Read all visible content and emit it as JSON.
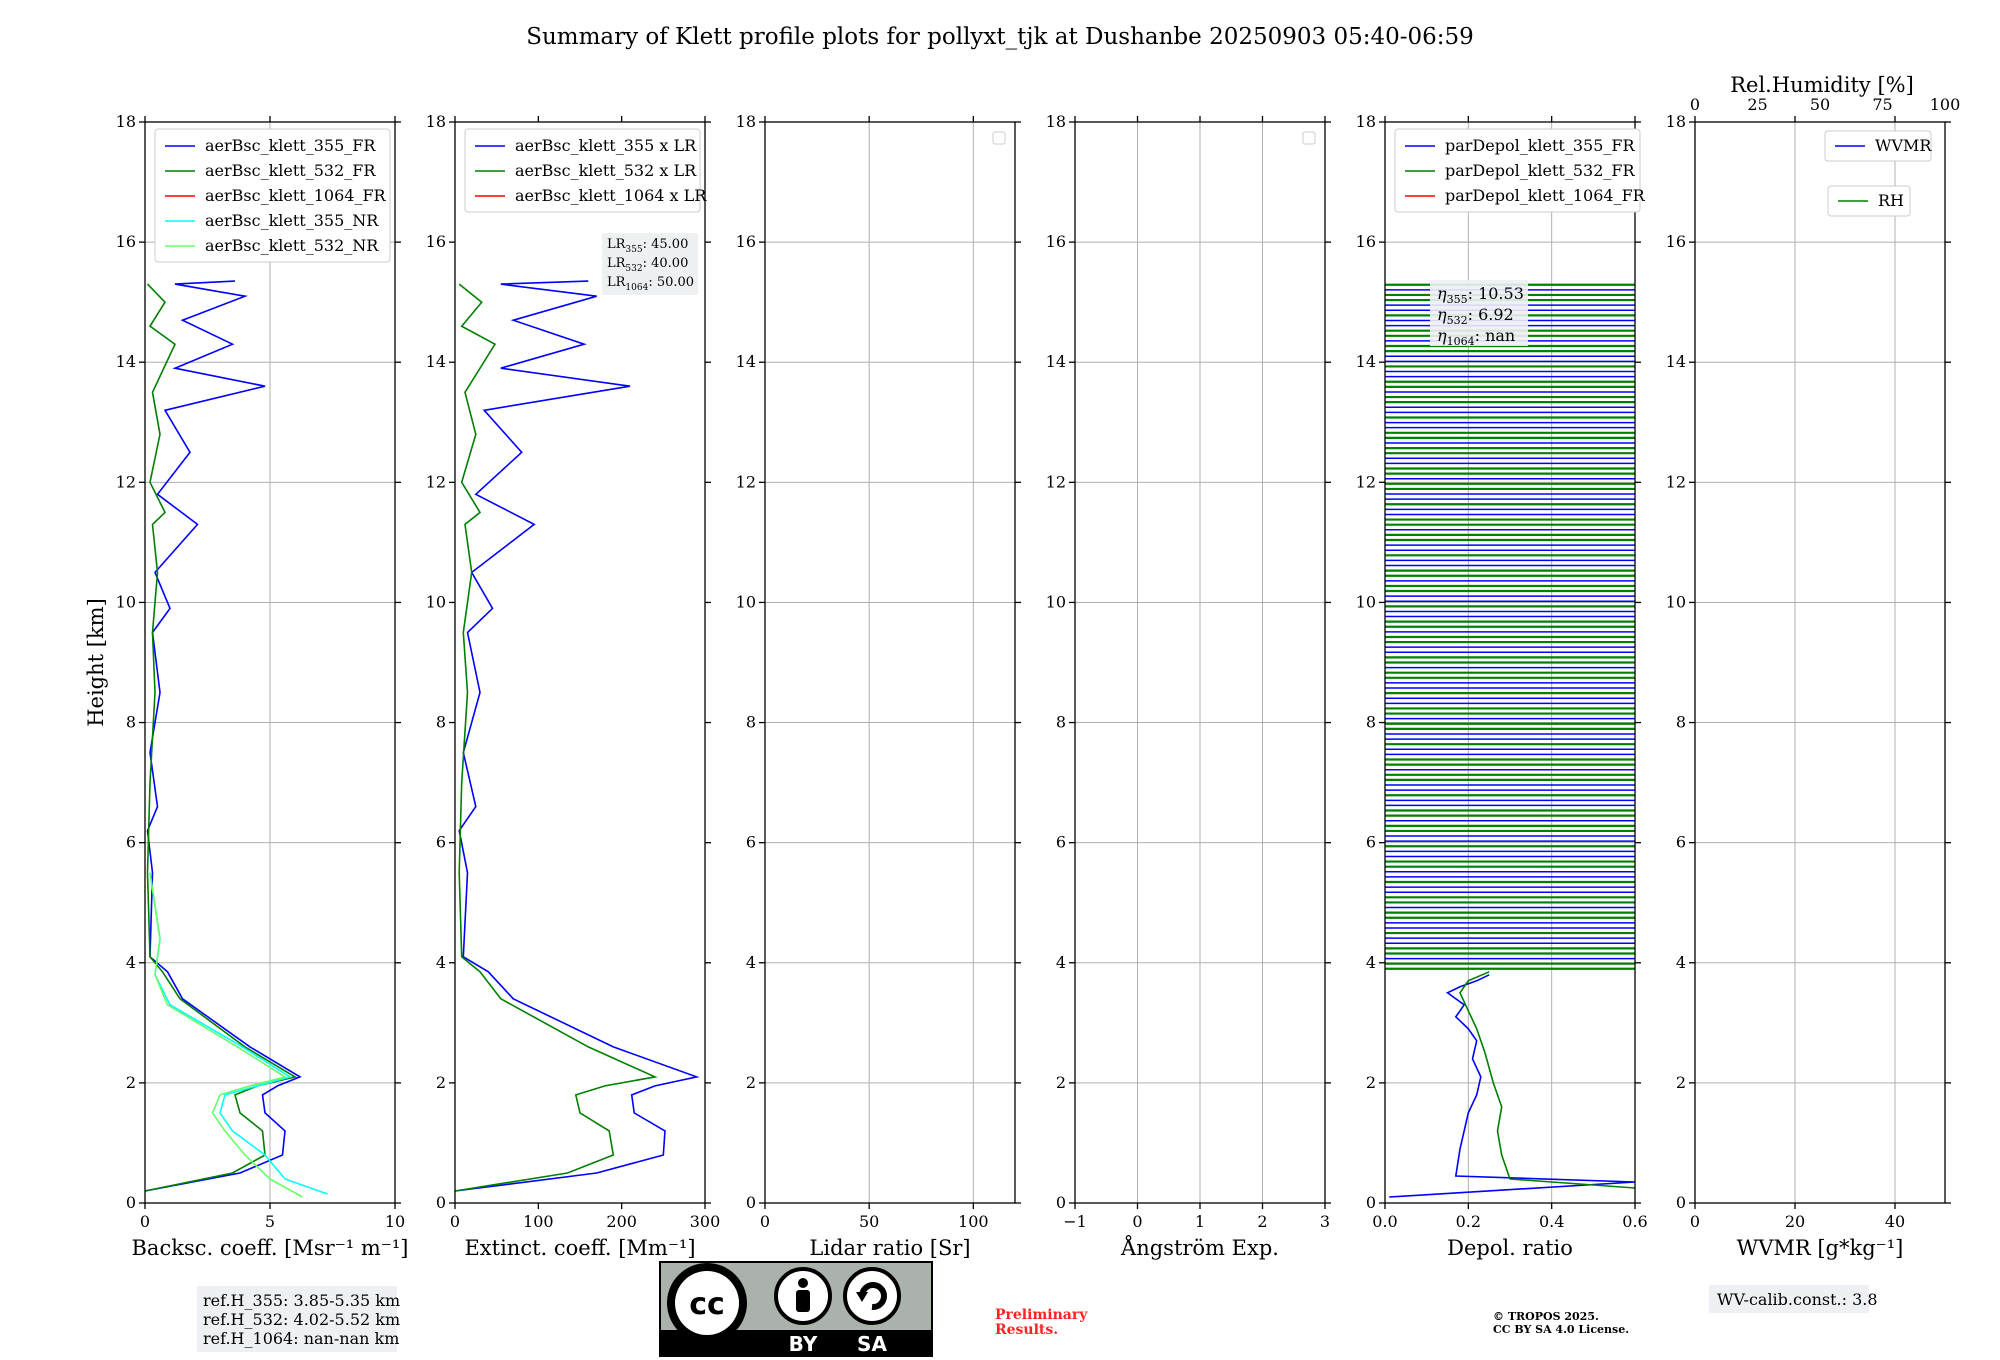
{
  "title": "Summary of Klett profile plots for pollyxt_tjk at Dushanbe 20250903 05:40-06:59",
  "chart_data": [
    {
      "type": "line",
      "id": "bsc",
      "xlabel": "Backsc. coeff. [Msr⁻¹ m⁻¹]",
      "ylabel": "Height [km]",
      "xlim": [
        0,
        10
      ],
      "ylim": [
        0,
        18
      ],
      "xticks": [
        0,
        5,
        10
      ],
      "yticks": [
        0,
        2,
        4,
        6,
        8,
        10,
        12,
        14,
        16,
        18
      ],
      "grid": true,
      "legend": "top-left",
      "series": [
        {
          "name": "aerBsc_klett_355_FR",
          "color": "#0000ff",
          "x": [
            0,
            3.8,
            5.5,
            5.6,
            4.8,
            4.7,
            5.3,
            6.2,
            4.2,
            1.5,
            0.9,
            0.2,
            0.3,
            0.1,
            0.5,
            0.2,
            0.6,
            0.3,
            1.0,
            0.4,
            2.1,
            0.5,
            1.8,
            0.8,
            4.8,
            1.2,
            3.5,
            1.5,
            4.0,
            1.2,
            3.6
          ],
          "y": [
            0.2,
            0.5,
            0.8,
            1.2,
            1.5,
            1.8,
            1.95,
            2.1,
            2.6,
            3.4,
            3.85,
            4.1,
            5.5,
            6.2,
            6.6,
            7.5,
            8.5,
            9.5,
            9.9,
            10.5,
            11.3,
            11.8,
            12.5,
            13.2,
            13.6,
            13.9,
            14.3,
            14.7,
            15.1,
            15.3,
            15.35
          ]
        },
        {
          "name": "aerBsc_klett_532_FR",
          "color": "#008000",
          "x": [
            0,
            3.5,
            4.8,
            4.7,
            3.8,
            3.6,
            4.5,
            6.0,
            4.0,
            1.4,
            0.7,
            0.2,
            0.1,
            0.2,
            0.4,
            0.3,
            0.5,
            0.3,
            0.8,
            0.2,
            0.6,
            0.3,
            1.2,
            0.2,
            0.8,
            0.1
          ],
          "y": [
            0.2,
            0.5,
            0.8,
            1.2,
            1.5,
            1.8,
            1.95,
            2.1,
            2.6,
            3.4,
            3.85,
            4.1,
            5.5,
            7.0,
            8.5,
            9.5,
            10.5,
            11.3,
            11.5,
            12.0,
            12.8,
            13.5,
            14.3,
            14.6,
            15.0,
            15.3
          ]
        },
        {
          "name": "aerBsc_klett_1064_FR",
          "color": "#ff0000",
          "x": [],
          "y": []
        },
        {
          "name": "aerBsc_klett_355_NR",
          "color": "#00ffff",
          "x": [
            7.3,
            5.6,
            4.8,
            3.5,
            3.0,
            3.2,
            4.5,
            5.8,
            3.9,
            1.0,
            0.4,
            0.6,
            0.2
          ],
          "y": [
            0.15,
            0.4,
            0.8,
            1.2,
            1.5,
            1.8,
            1.95,
            2.1,
            2.6,
            3.3,
            3.8,
            4.4,
            5.5
          ]
        },
        {
          "name": "aerBsc_klett_532_NR",
          "color": "#66ff66",
          "x": [
            6.3,
            5.0,
            4.0,
            3.2,
            2.7,
            3.0,
            4.2,
            5.6,
            3.7,
            0.9,
            0.4,
            0.6,
            0.2
          ],
          "y": [
            0.1,
            0.4,
            0.8,
            1.2,
            1.5,
            1.8,
            1.95,
            2.1,
            2.6,
            3.3,
            3.8,
            4.4,
            5.5
          ]
        }
      ],
      "box": [
        "ref.H_355: 3.85-5.35 km",
        "ref.H_532: 4.02-5.52 km",
        "ref.H_1064: nan-nan km"
      ]
    },
    {
      "type": "line",
      "id": "ext",
      "xlabel": "Extinct. coeff. [Mm⁻¹]",
      "xlim": [
        0,
        300
      ],
      "ylim": [
        0,
        18
      ],
      "xticks": [
        0,
        100,
        200,
        300
      ],
      "yticks": [
        0,
        2,
        4,
        6,
        8,
        10,
        12,
        14,
        16,
        18
      ],
      "grid": false,
      "legend": "top-left",
      "series": [
        {
          "name": "aerBsc_klett_355 x LR",
          "color": "#0000ff",
          "x": [
            0,
            170,
            250,
            252,
            215,
            212,
            240,
            290,
            190,
            70,
            40,
            10,
            15,
            5,
            25,
            10,
            30,
            15,
            45,
            20,
            95,
            25,
            80,
            35,
            210,
            55,
            155,
            70,
            170,
            55,
            160
          ],
          "y": [
            0.2,
            0.5,
            0.8,
            1.2,
            1.5,
            1.8,
            1.95,
            2.1,
            2.6,
            3.4,
            3.85,
            4.1,
            5.5,
            6.2,
            6.6,
            7.5,
            8.5,
            9.5,
            9.9,
            10.5,
            11.3,
            11.8,
            12.5,
            13.2,
            13.6,
            13.9,
            14.3,
            14.7,
            15.1,
            15.3,
            15.35
          ]
        },
        {
          "name": "aerBsc_klett_532 x LR",
          "color": "#008000",
          "x": [
            0,
            135,
            190,
            185,
            150,
            145,
            180,
            240,
            160,
            55,
            30,
            8,
            5,
            8,
            15,
            10,
            20,
            12,
            30,
            8,
            25,
            12,
            48,
            8,
            32,
            5
          ],
          "y": [
            0.2,
            0.5,
            0.8,
            1.2,
            1.5,
            1.8,
            1.95,
            2.1,
            2.6,
            3.4,
            3.85,
            4.1,
            5.5,
            7.0,
            8.5,
            9.5,
            10.5,
            11.3,
            11.5,
            12.0,
            12.8,
            13.5,
            14.3,
            14.6,
            15.0,
            15.3
          ]
        },
        {
          "name": "aerBsc_klett_1064 x LR",
          "color": "#ff0000",
          "x": [],
          "y": []
        }
      ],
      "box": [
        "LR355: 45.00",
        "LR532: 40.00",
        "LR1064: 50.00"
      ]
    },
    {
      "type": "line",
      "id": "lr",
      "xlabel": "Lidar ratio [Sr]",
      "xlim": [
        0,
        120
      ],
      "ylim": [
        0,
        18
      ],
      "xticks": [
        0,
        50,
        100
      ],
      "yticks": [
        0,
        2,
        4,
        6,
        8,
        10,
        12,
        14,
        16,
        18
      ],
      "grid": true,
      "legend": "empty",
      "series": []
    },
    {
      "type": "line",
      "id": "ang",
      "xlabel": "Ångström Exp.",
      "xlim": [
        -1,
        3
      ],
      "ylim": [
        0,
        18
      ],
      "xticks": [
        -1,
        0,
        1,
        2,
        3
      ],
      "yticks": [
        0,
        2,
        4,
        6,
        8,
        10,
        12,
        14,
        16,
        18
      ],
      "grid": true,
      "legend": "empty",
      "series": []
    },
    {
      "type": "line",
      "id": "depol",
      "xlabel": "Depol. ratio",
      "xlim": [
        0,
        0.6
      ],
      "ylim": [
        0,
        18
      ],
      "xticks": [
        0.0,
        0.2,
        0.4,
        0.6
      ],
      "yticks": [
        0,
        2,
        4,
        6,
        8,
        10,
        12,
        14,
        16,
        18
      ],
      "grid": true,
      "legend": "top-left",
      "series": [
        {
          "name": "parDepol_klett_355_FR",
          "color": "#0000ff",
          "x": [
            0.01,
            0.6,
            0.17,
            0.18,
            0.2,
            0.22,
            0.23,
            0.21,
            0.22,
            0.2,
            0.17,
            0.19,
            0.15,
            0.18,
            0.22,
            0.25
          ],
          "y": [
            0.1,
            0.35,
            0.45,
            0.9,
            1.5,
            1.8,
            2.1,
            2.4,
            2.7,
            2.9,
            3.1,
            3.3,
            3.5,
            3.6,
            3.7,
            3.8
          ]
        },
        {
          "name": "parDepol_klett_532_FR",
          "color": "#008000",
          "x": [
            0.6,
            0.3,
            0.28,
            0.27,
            0.28,
            0.26,
            0.24,
            0.22,
            0.2,
            0.18,
            0.2,
            0.25
          ],
          "y": [
            0.25,
            0.4,
            0.8,
            1.2,
            1.6,
            2.0,
            2.5,
            2.9,
            3.2,
            3.5,
            3.7,
            3.85
          ]
        },
        {
          "name": "parDepol_klett_1064_FR",
          "color": "#ff0000",
          "x": [],
          "y": []
        }
      ],
      "box": [
        "η355: 10.53",
        "η532: 6.92",
        "η1064: nan"
      ]
    },
    {
      "type": "line",
      "id": "wv",
      "xlabel": "WVMR [g*kg⁻¹]",
      "top_xlabel": "Rel.Humidity [%]",
      "xlim": [
        0,
        50
      ],
      "top_xlim": [
        0,
        100
      ],
      "ylim": [
        0,
        18
      ],
      "xticks": [
        0,
        20,
        40
      ],
      "top_xticks": [
        0,
        25,
        50,
        75,
        100
      ],
      "yticks": [
        0,
        2,
        4,
        6,
        8,
        10,
        12,
        14,
        16,
        18
      ],
      "grid": true,
      "legend": "top-right",
      "series": [
        {
          "name": "WVMR",
          "color": "#0000ff",
          "x": [],
          "y": []
        },
        {
          "name": "RH",
          "color": "#008000",
          "x": [],
          "y": []
        }
      ],
      "box": [
        "WV-calib.const.: 3.8"
      ]
    }
  ],
  "license": {
    "badge_by": "BY",
    "badge_sa": "SA",
    "badge_cc": "cc",
    "preliminary": [
      "Preliminary",
      "Results."
    ],
    "copyright": [
      "© TROPOS 2025.",
      "CC BY SA 4.0 License."
    ]
  },
  "colors": {
    "blue": "#0000ff",
    "green": "#008000",
    "red": "#ff0000",
    "cyan": "#00ffff",
    "lightgreen": "#66ff66",
    "prelim": "#ff2222"
  }
}
